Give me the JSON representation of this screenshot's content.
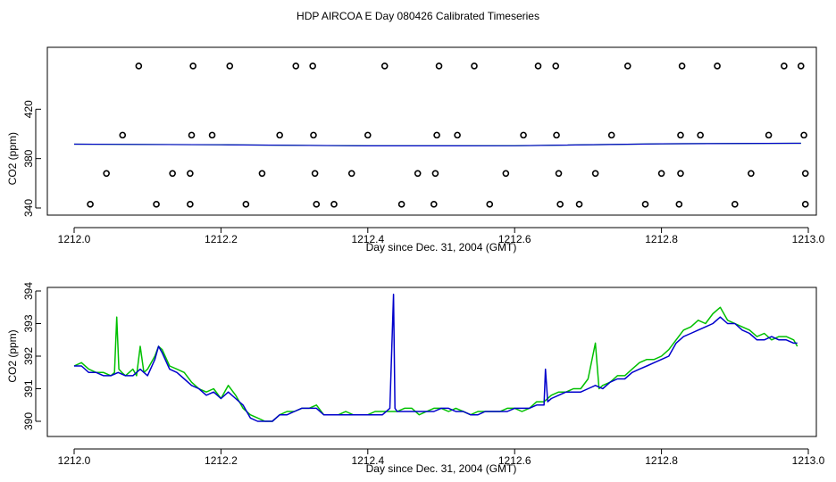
{
  "title": "HDP AIRCOA E  Day 080426  Calibrated Timeseries",
  "colors": {
    "green": "#00c000",
    "blue": "#0000cc",
    "axis": "#000000"
  },
  "chart_data": [
    {
      "type": "scatter",
      "xlabel": "Day since Dec. 31, 2004 (GMT)",
      "ylabel": "CO2 (ppm)",
      "xlim": [
        1212.0,
        1213.0
      ],
      "ylim": [
        335,
        475
      ],
      "x_ticks": [
        "1212.0",
        "1212.2",
        "1212.4",
        "1212.6",
        "1212.8",
        "1213.0"
      ],
      "y_ticks": [
        "340",
        "380",
        "420"
      ],
      "points": [
        [
          1212.088,
          455
        ],
        [
          1212.162,
          455
        ],
        [
          1212.212,
          455
        ],
        [
          1212.302,
          455
        ],
        [
          1212.325,
          455
        ],
        [
          1212.423,
          455
        ],
        [
          1212.497,
          455
        ],
        [
          1212.545,
          455
        ],
        [
          1212.632,
          455
        ],
        [
          1212.656,
          455
        ],
        [
          1212.754,
          455
        ],
        [
          1212.828,
          455
        ],
        [
          1212.876,
          455
        ],
        [
          1212.967,
          455
        ],
        [
          1212.99,
          455
        ],
        [
          1212.066,
          399
        ],
        [
          1212.16,
          399
        ],
        [
          1212.188,
          399
        ],
        [
          1212.28,
          399
        ],
        [
          1212.326,
          399
        ],
        [
          1212.4,
          399
        ],
        [
          1212.494,
          399
        ],
        [
          1212.522,
          399
        ],
        [
          1212.612,
          399
        ],
        [
          1212.657,
          399
        ],
        [
          1212.732,
          399
        ],
        [
          1212.826,
          399
        ],
        [
          1212.853,
          399
        ],
        [
          1212.946,
          399
        ],
        [
          1212.994,
          399
        ],
        [
          1212.044,
          368
        ],
        [
          1212.134,
          368
        ],
        [
          1212.158,
          368
        ],
        [
          1212.256,
          368
        ],
        [
          1212.328,
          368
        ],
        [
          1212.378,
          368
        ],
        [
          1212.468,
          368
        ],
        [
          1212.492,
          368
        ],
        [
          1212.588,
          368
        ],
        [
          1212.66,
          368
        ],
        [
          1212.71,
          368
        ],
        [
          1212.8,
          368
        ],
        [
          1212.826,
          368
        ],
        [
          1212.922,
          368
        ],
        [
          1212.996,
          368
        ],
        [
          1212.022,
          343
        ],
        [
          1212.112,
          343
        ],
        [
          1212.158,
          343
        ],
        [
          1212.234,
          343
        ],
        [
          1212.33,
          343
        ],
        [
          1212.354,
          343
        ],
        [
          1212.446,
          343
        ],
        [
          1212.49,
          343
        ],
        [
          1212.566,
          343
        ],
        [
          1212.662,
          343
        ],
        [
          1212.688,
          343
        ],
        [
          1212.778,
          343
        ],
        [
          1212.824,
          343
        ],
        [
          1212.9,
          343
        ],
        [
          1212.996,
          343
        ]
      ],
      "series": [
        {
          "color": "green",
          "x": [
            1212.0,
            1212.2,
            1212.4,
            1212.6,
            1212.8,
            1212.99
          ],
          "y": [
            391.7,
            391.2,
            390.3,
            390.4,
            392.0,
            392.4
          ]
        },
        {
          "color": "blue",
          "x": [
            1212.0,
            1212.2,
            1212.4,
            1212.6,
            1212.8,
            1212.99
          ],
          "y": [
            391.7,
            391.2,
            390.3,
            390.4,
            392.0,
            392.4
          ]
        }
      ]
    },
    {
      "type": "line",
      "xlabel": "Day since Dec. 31, 2004 (GMT)",
      "ylabel": "CO2 (ppm)",
      "xlim": [
        1212.0,
        1213.0
      ],
      "ylim": [
        389.7,
        394.2
      ],
      "x_ticks": [
        "1212.0",
        "1212.2",
        "1212.4",
        "1212.6",
        "1212.8",
        "1213.0"
      ],
      "y_ticks": [
        "390",
        "391",
        "392",
        "393",
        "394"
      ],
      "series": [
        {
          "color": "green",
          "x": [
            1212.0,
            1212.01,
            1212.02,
            1212.03,
            1212.04,
            1212.05,
            1212.055,
            1212.058,
            1212.061,
            1212.065,
            1212.07,
            1212.08,
            1212.085,
            1212.09,
            1212.095,
            1212.1,
            1212.11,
            1212.115,
            1212.12,
            1212.13,
            1212.14,
            1212.15,
            1212.16,
            1212.17,
            1212.18,
            1212.19,
            1212.2,
            1212.21,
            1212.22,
            1212.23,
            1212.24,
            1212.25,
            1212.26,
            1212.27,
            1212.28,
            1212.29,
            1212.3,
            1212.31,
            1212.32,
            1212.33,
            1212.34,
            1212.35,
            1212.36,
            1212.37,
            1212.38,
            1212.39,
            1212.4,
            1212.41,
            1212.42,
            1212.43,
            1212.44,
            1212.45,
            1212.46,
            1212.47,
            1212.48,
            1212.49,
            1212.5,
            1212.51,
            1212.52,
            1212.53,
            1212.54,
            1212.55,
            1212.56,
            1212.57,
            1212.58,
            1212.59,
            1212.6,
            1212.61,
            1212.62,
            1212.63,
            1212.64,
            1212.65,
            1212.66,
            1212.67,
            1212.68,
            1212.69,
            1212.7,
            1212.71,
            1212.715,
            1212.72,
            1212.73,
            1212.74,
            1212.75,
            1212.76,
            1212.77,
            1212.78,
            1212.79,
            1212.8,
            1212.81,
            1212.82,
            1212.83,
            1212.84,
            1212.85,
            1212.86,
            1212.87,
            1212.88,
            1212.89,
            1212.9,
            1212.91,
            1212.92,
            1212.93,
            1212.94,
            1212.95,
            1212.96,
            1212.97,
            1212.98,
            1212.985
          ],
          "y": [
            391.7,
            391.8,
            391.6,
            391.5,
            391.5,
            391.4,
            391.5,
            393.2,
            391.6,
            391.5,
            391.4,
            391.6,
            391.4,
            392.3,
            391.5,
            391.6,
            392.0,
            392.3,
            392.2,
            391.7,
            391.6,
            391.5,
            391.2,
            391.0,
            390.9,
            391.0,
            390.7,
            391.1,
            390.8,
            390.4,
            390.2,
            390.1,
            390.0,
            390.0,
            390.2,
            390.3,
            390.3,
            390.4,
            390.4,
            390.5,
            390.2,
            390.2,
            390.2,
            390.3,
            390.2,
            390.2,
            390.2,
            390.3,
            390.3,
            390.3,
            390.3,
            390.4,
            390.4,
            390.2,
            390.3,
            390.4,
            390.4,
            390.3,
            390.4,
            390.3,
            390.2,
            390.3,
            390.3,
            390.3,
            390.3,
            390.4,
            390.4,
            390.3,
            390.4,
            390.6,
            390.6,
            390.8,
            390.9,
            390.9,
            391.0,
            391.0,
            391.3,
            392.4,
            391.0,
            391.1,
            391.2,
            391.4,
            391.4,
            391.6,
            391.8,
            391.9,
            391.9,
            392.0,
            392.2,
            392.5,
            392.8,
            392.9,
            393.1,
            393.0,
            393.3,
            393.5,
            393.1,
            393.0,
            392.9,
            392.8,
            392.6,
            392.7,
            392.5,
            392.6,
            392.6,
            392.5,
            392.3
          ]
        },
        {
          "color": "blue",
          "x": [
            1212.0,
            1212.01,
            1212.02,
            1212.03,
            1212.04,
            1212.05,
            1212.06,
            1212.07,
            1212.08,
            1212.09,
            1212.1,
            1212.11,
            1212.115,
            1212.12,
            1212.13,
            1212.14,
            1212.15,
            1212.16,
            1212.17,
            1212.18,
            1212.19,
            1212.2,
            1212.21,
            1212.22,
            1212.23,
            1212.24,
            1212.25,
            1212.26,
            1212.27,
            1212.28,
            1212.29,
            1212.3,
            1212.31,
            1212.32,
            1212.33,
            1212.34,
            1212.35,
            1212.36,
            1212.37,
            1212.38,
            1212.39,
            1212.4,
            1212.41,
            1212.42,
            1212.43,
            1212.435,
            1212.437,
            1212.44,
            1212.45,
            1212.46,
            1212.47,
            1212.48,
            1212.49,
            1212.5,
            1212.51,
            1212.52,
            1212.53,
            1212.54,
            1212.55,
            1212.56,
            1212.57,
            1212.58,
            1212.59,
            1212.6,
            1212.61,
            1212.62,
            1212.63,
            1212.64,
            1212.642,
            1212.645,
            1212.65,
            1212.66,
            1212.67,
            1212.68,
            1212.69,
            1212.7,
            1212.71,
            1212.72,
            1212.73,
            1212.74,
            1212.75,
            1212.76,
            1212.77,
            1212.78,
            1212.79,
            1212.8,
            1212.81,
            1212.82,
            1212.83,
            1212.84,
            1212.85,
            1212.86,
            1212.87,
            1212.88,
            1212.89,
            1212.9,
            1212.91,
            1212.92,
            1212.93,
            1212.94,
            1212.95,
            1212.96,
            1212.97,
            1212.98,
            1212.985
          ],
          "y": [
            391.7,
            391.7,
            391.5,
            391.5,
            391.4,
            391.4,
            391.5,
            391.4,
            391.4,
            391.6,
            391.4,
            391.9,
            392.3,
            392.1,
            391.6,
            391.5,
            391.3,
            391.1,
            391.0,
            390.8,
            390.9,
            390.7,
            390.9,
            390.7,
            390.5,
            390.1,
            390.0,
            390.0,
            390.0,
            390.2,
            390.2,
            390.3,
            390.4,
            390.4,
            390.4,
            390.2,
            390.2,
            390.2,
            390.2,
            390.2,
            390.2,
            390.2,
            390.2,
            390.2,
            390.4,
            393.9,
            390.4,
            390.3,
            390.3,
            390.3,
            390.3,
            390.3,
            390.3,
            390.4,
            390.4,
            390.3,
            390.3,
            390.2,
            390.2,
            390.3,
            390.3,
            390.3,
            390.3,
            390.4,
            390.4,
            390.4,
            390.5,
            390.5,
            391.6,
            390.6,
            390.7,
            390.8,
            390.9,
            390.9,
            390.9,
            391.0,
            391.1,
            391.0,
            391.2,
            391.3,
            391.3,
            391.5,
            391.6,
            391.7,
            391.8,
            391.9,
            392.0,
            392.4,
            392.6,
            392.7,
            392.8,
            392.9,
            393.0,
            393.2,
            393.0,
            393.0,
            392.8,
            392.7,
            392.5,
            392.5,
            392.6,
            392.5,
            392.5,
            392.4,
            392.4
          ]
        }
      ]
    }
  ]
}
